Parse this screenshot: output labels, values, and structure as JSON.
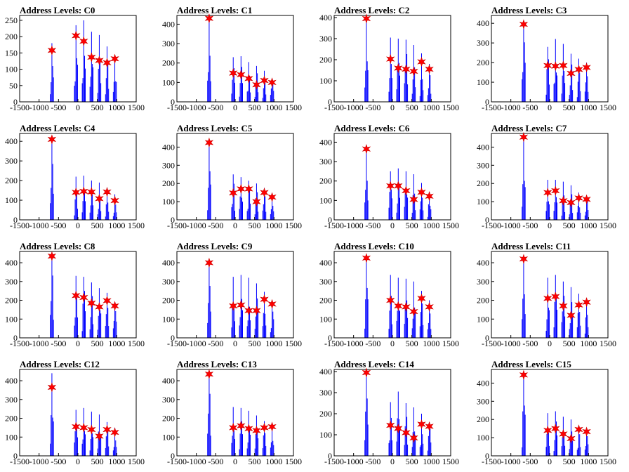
{
  "chart_data": [
    {
      "type": "histogram",
      "title": "Address Levels: C0",
      "xlim": [
        -1500,
        1500
      ],
      "ylim": [
        0,
        265
      ],
      "yticks": [
        0,
        50,
        100,
        150,
        200,
        250
      ],
      "xticks": [
        -1500,
        -1000,
        -500,
        0,
        500,
        1000,
        1500
      ],
      "peaks": [
        {
          "x": -670,
          "bar": 180,
          "star": 158
        },
        {
          "x": -50,
          "bar": 235,
          "star": 203
        },
        {
          "x": 150,
          "bar": 250,
          "star": 186
        },
        {
          "x": 350,
          "bar": 215,
          "star": 137
        },
        {
          "x": 550,
          "bar": 205,
          "star": 127
        },
        {
          "x": 750,
          "bar": 170,
          "star": 120
        },
        {
          "x": 950,
          "bar": 140,
          "star": 132
        }
      ]
    },
    {
      "type": "histogram",
      "title": "Address Levels: C1",
      "xlim": [
        -1500,
        1500
      ],
      "ylim": [
        0,
        445
      ],
      "yticks": [
        0,
        100,
        200,
        300,
        400
      ],
      "xticks": [
        -1500,
        -1000,
        -500,
        0,
        500,
        1000,
        1500
      ],
      "peaks": [
        {
          "x": -670,
          "bar": 440,
          "star": 430
        },
        {
          "x": -50,
          "bar": 230,
          "star": 148
        },
        {
          "x": 150,
          "bar": 235,
          "star": 140
        },
        {
          "x": 350,
          "bar": 205,
          "star": 120
        },
        {
          "x": 550,
          "bar": 185,
          "star": 88
        },
        {
          "x": 750,
          "bar": 160,
          "star": 110
        },
        {
          "x": 950,
          "bar": 120,
          "star": 100
        }
      ]
    },
    {
      "type": "histogram",
      "title": "Address Levels: C2",
      "xlim": [
        -1500,
        1500
      ],
      "ylim": [
        0,
        410
      ],
      "yticks": [
        0,
        100,
        200,
        300,
        400
      ],
      "xticks": [
        -1500,
        -1000,
        -500,
        0,
        500,
        1000,
        1500
      ],
      "peaks": [
        {
          "x": -670,
          "bar": 410,
          "star": 395
        },
        {
          "x": -50,
          "bar": 305,
          "star": 203
        },
        {
          "x": 150,
          "bar": 300,
          "star": 160
        },
        {
          "x": 350,
          "bar": 295,
          "star": 155
        },
        {
          "x": 550,
          "bar": 270,
          "star": 145
        },
        {
          "x": 750,
          "bar": 230,
          "star": 190
        },
        {
          "x": 950,
          "bar": 180,
          "star": 155
        }
      ]
    },
    {
      "type": "histogram",
      "title": "Address Levels: C3",
      "xlim": [
        -1500,
        1500
      ],
      "ylim": [
        0,
        440
      ],
      "yticks": [
        0,
        100,
        200,
        300,
        400
      ],
      "xticks": [
        -1500,
        -1000,
        -500,
        0,
        500,
        1000,
        1500
      ],
      "peaks": [
        {
          "x": -670,
          "bar": 405,
          "star": 395
        },
        {
          "x": -50,
          "bar": 280,
          "star": 185
        },
        {
          "x": 150,
          "bar": 320,
          "star": 182
        },
        {
          "x": 350,
          "bar": 295,
          "star": 185
        },
        {
          "x": 550,
          "bar": 245,
          "star": 145
        },
        {
          "x": 750,
          "bar": 220,
          "star": 165
        },
        {
          "x": 950,
          "bar": 200,
          "star": 175
        }
      ]
    },
    {
      "type": "histogram",
      "title": "Address Levels: C4",
      "xlim": [
        -1500,
        1500
      ],
      "ylim": [
        0,
        440
      ],
      "yticks": [
        0,
        100,
        200,
        300,
        400
      ],
      "xticks": [
        -1500,
        -1000,
        -500,
        0,
        500,
        1000,
        1500
      ],
      "peaks": [
        {
          "x": -670,
          "bar": 420,
          "star": 410
        },
        {
          "x": -50,
          "bar": 220,
          "star": 140
        },
        {
          "x": 150,
          "bar": 225,
          "star": 145
        },
        {
          "x": 350,
          "bar": 200,
          "star": 142
        },
        {
          "x": 550,
          "bar": 190,
          "star": 108
        },
        {
          "x": 750,
          "bar": 165,
          "star": 142
        },
        {
          "x": 950,
          "bar": 130,
          "star": 98
        }
      ]
    },
    {
      "type": "histogram",
      "title": "Address Levels: C5",
      "xlim": [
        -1500,
        1500
      ],
      "ylim": [
        0,
        475
      ],
      "yticks": [
        0,
        100,
        200,
        300,
        400
      ],
      "xticks": [
        -1500,
        -1000,
        -500,
        0,
        500,
        1000,
        1500
      ],
      "peaks": [
        {
          "x": -670,
          "bar": 440,
          "star": 425
        },
        {
          "x": -50,
          "bar": 250,
          "star": 148
        },
        {
          "x": 150,
          "bar": 235,
          "star": 170
        },
        {
          "x": 350,
          "bar": 215,
          "star": 170
        },
        {
          "x": 550,
          "bar": 200,
          "star": 100
        },
        {
          "x": 750,
          "bar": 175,
          "star": 150
        },
        {
          "x": 950,
          "bar": 140,
          "star": 125
        }
      ]
    },
    {
      "type": "histogram",
      "title": "Address Levels: C6",
      "xlim": [
        -1500,
        1500
      ],
      "ylim": [
        0,
        445
      ],
      "yticks": [
        0,
        100,
        200,
        300,
        400
      ],
      "xticks": [
        -1500,
        -1000,
        -500,
        0,
        500,
        1000,
        1500
      ],
      "peaks": [
        {
          "x": -670,
          "bar": 375,
          "star": 365
        },
        {
          "x": -50,
          "bar": 250,
          "star": 175
        },
        {
          "x": 150,
          "bar": 265,
          "star": 175
        },
        {
          "x": 350,
          "bar": 250,
          "star": 150
        },
        {
          "x": 550,
          "bar": 235,
          "star": 105
        },
        {
          "x": 750,
          "bar": 190,
          "star": 142
        },
        {
          "x": 950,
          "bar": 145,
          "star": 122
        }
      ]
    },
    {
      "type": "histogram",
      "title": "Address Levels: C7",
      "xlim": [
        -1500,
        1500
      ],
      "ylim": [
        0,
        475
      ],
      "yticks": [
        0,
        100,
        200,
        300,
        400
      ],
      "xticks": [
        -1500,
        -1000,
        -500,
        0,
        500,
        1000,
        1500
      ],
      "peaks": [
        {
          "x": -670,
          "bar": 460,
          "star": 455
        },
        {
          "x": -50,
          "bar": 220,
          "star": 150
        },
        {
          "x": 150,
          "bar": 220,
          "star": 160
        },
        {
          "x": 350,
          "bar": 210,
          "star": 105
        },
        {
          "x": 550,
          "bar": 190,
          "star": 95
        },
        {
          "x": 750,
          "bar": 150,
          "star": 120
        },
        {
          "x": 950,
          "bar": 130,
          "star": 113
        }
      ]
    },
    {
      "type": "histogram",
      "title": "Address Levels: C8",
      "xlim": [
        -1500,
        1500
      ],
      "ylim": [
        0,
        460
      ],
      "yticks": [
        0,
        100,
        200,
        300,
        400
      ],
      "xticks": [
        -1500,
        -1000,
        -500,
        0,
        500,
        1000,
        1500
      ],
      "peaks": [
        {
          "x": -670,
          "bar": 445,
          "star": 435
        },
        {
          "x": -50,
          "bar": 330,
          "star": 225
        },
        {
          "x": 150,
          "bar": 325,
          "star": 215
        },
        {
          "x": 350,
          "bar": 295,
          "star": 185
        },
        {
          "x": 550,
          "bar": 265,
          "star": 165
        },
        {
          "x": 750,
          "bar": 240,
          "star": 198
        },
        {
          "x": 950,
          "bar": 190,
          "star": 170
        }
      ]
    },
    {
      "type": "histogram",
      "title": "Address Levels: C9",
      "xlim": [
        -1500,
        1500
      ],
      "ylim": [
        0,
        460
      ],
      "yticks": [
        0,
        100,
        200,
        300,
        400
      ],
      "xticks": [
        -1500,
        -1000,
        -500,
        0,
        500,
        1000,
        1500
      ],
      "peaks": [
        {
          "x": -670,
          "bar": 410,
          "star": 400
        },
        {
          "x": -50,
          "bar": 325,
          "star": 170
        },
        {
          "x": 150,
          "bar": 335,
          "star": 175
        },
        {
          "x": 350,
          "bar": 320,
          "star": 145
        },
        {
          "x": 550,
          "bar": 290,
          "star": 145
        },
        {
          "x": 750,
          "bar": 245,
          "star": 205
        },
        {
          "x": 950,
          "bar": 200,
          "star": 180
        }
      ]
    },
    {
      "type": "histogram",
      "title": "Address Levels: C10",
      "xlim": [
        -1500,
        1500
      ],
      "ylim": [
        0,
        460
      ],
      "yticks": [
        0,
        100,
        200,
        300,
        400
      ],
      "xticks": [
        -1500,
        -1000,
        -500,
        0,
        500,
        1000,
        1500
      ],
      "peaks": [
        {
          "x": -670,
          "bar": 440,
          "star": 425
        },
        {
          "x": -50,
          "bar": 335,
          "star": 200
        },
        {
          "x": 150,
          "bar": 320,
          "star": 170
        },
        {
          "x": 350,
          "bar": 315,
          "star": 165
        },
        {
          "x": 550,
          "bar": 300,
          "star": 140
        },
        {
          "x": 750,
          "bar": 250,
          "star": 210
        },
        {
          "x": 950,
          "bar": 200,
          "star": 165
        }
      ]
    },
    {
      "type": "histogram",
      "title": "Address Levels: C11",
      "xlim": [
        -1500,
        1500
      ],
      "ylim": [
        0,
        460
      ],
      "yticks": [
        0,
        100,
        200,
        300,
        400
      ],
      "xticks": [
        -1500,
        -1000,
        -500,
        0,
        500,
        1000,
        1500
      ],
      "peaks": [
        {
          "x": -670,
          "bar": 435,
          "star": 420
        },
        {
          "x": -50,
          "bar": 320,
          "star": 210
        },
        {
          "x": 150,
          "bar": 335,
          "star": 220
        },
        {
          "x": 350,
          "bar": 300,
          "star": 170
        },
        {
          "x": 550,
          "bar": 270,
          "star": 120
        },
        {
          "x": 750,
          "bar": 235,
          "star": 175
        },
        {
          "x": 950,
          "bar": 205,
          "star": 190
        }
      ]
    },
    {
      "type": "histogram",
      "title": "Address Levels: C12",
      "xlim": [
        -1500,
        1500
      ],
      "ylim": [
        0,
        460
      ],
      "yticks": [
        0,
        100,
        200,
        300,
        400
      ],
      "xticks": [
        -1500,
        -1000,
        -500,
        0,
        500,
        1000,
        1500
      ],
      "peaks": [
        {
          "x": -670,
          "bar": 440,
          "star": 365
        },
        {
          "x": -50,
          "bar": 245,
          "star": 155
        },
        {
          "x": 150,
          "bar": 255,
          "star": 150
        },
        {
          "x": 350,
          "bar": 235,
          "star": 140
        },
        {
          "x": 550,
          "bar": 220,
          "star": 105
        },
        {
          "x": 750,
          "bar": 180,
          "star": 140
        },
        {
          "x": 950,
          "bar": 150,
          "star": 125
        }
      ]
    },
    {
      "type": "histogram",
      "title": "Address Levels: C13",
      "xlim": [
        -1500,
        1500
      ],
      "ylim": [
        0,
        460
      ],
      "yticks": [
        0,
        100,
        200,
        300,
        400
      ],
      "xticks": [
        -1500,
        -1000,
        -500,
        0,
        500,
        1000,
        1500
      ],
      "peaks": [
        {
          "x": -670,
          "bar": 445,
          "star": 435
        },
        {
          "x": -50,
          "bar": 260,
          "star": 150
        },
        {
          "x": 150,
          "bar": 255,
          "star": 160
        },
        {
          "x": 350,
          "bar": 240,
          "star": 145
        },
        {
          "x": 550,
          "bar": 215,
          "star": 135
        },
        {
          "x": 750,
          "bar": 185,
          "star": 150
        },
        {
          "x": 950,
          "bar": 160,
          "star": 155
        }
      ]
    },
    {
      "type": "histogram",
      "title": "Address Levels: C14",
      "xlim": [
        -1500,
        1500
      ],
      "ylim": [
        0,
        410
      ],
      "yticks": [
        0,
        100,
        200,
        300,
        400
      ],
      "xticks": [
        -1500,
        -1000,
        -500,
        0,
        500,
        1000,
        1500
      ],
      "peaks": [
        {
          "x": -670,
          "bar": 405,
          "star": 395
        },
        {
          "x": -50,
          "bar": 255,
          "star": 145
        },
        {
          "x": 150,
          "bar": 305,
          "star": 130
        },
        {
          "x": 350,
          "bar": 250,
          "star": 110
        },
        {
          "x": 550,
          "bar": 230,
          "star": 85
        },
        {
          "x": 750,
          "bar": 200,
          "star": 150
        },
        {
          "x": 950,
          "bar": 160,
          "star": 140
        }
      ]
    },
    {
      "type": "histogram",
      "title": "Address Levels: C15",
      "xlim": [
        -1500,
        1500
      ],
      "ylim": [
        0,
        475
      ],
      "yticks": [
        0,
        100,
        200,
        300,
        400
      ],
      "xticks": [
        -1500,
        -1000,
        -500,
        0,
        500,
        1000,
        1500
      ],
      "peaks": [
        {
          "x": -670,
          "bar": 460,
          "star": 445
        },
        {
          "x": -50,
          "bar": 235,
          "star": 140
        },
        {
          "x": 150,
          "bar": 245,
          "star": 150
        },
        {
          "x": 350,
          "bar": 215,
          "star": 120
        },
        {
          "x": 550,
          "bar": 200,
          "star": 95
        },
        {
          "x": 750,
          "bar": 165,
          "star": 145
        },
        {
          "x": 950,
          "bar": 145,
          "star": 133
        }
      ]
    }
  ],
  "colors": {
    "bars": "#0000ff",
    "markers": "#ff0000",
    "marker_edge": "#cc0000",
    "axes": "#000000"
  }
}
